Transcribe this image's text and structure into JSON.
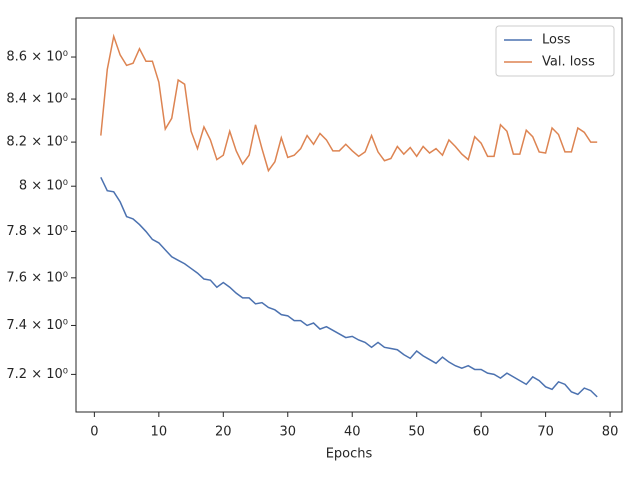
{
  "chart_data": {
    "type": "line",
    "xlabel": "Epochs",
    "log_y": true,
    "legend": "upper right",
    "x": [
      1,
      2,
      3,
      4,
      5,
      6,
      7,
      8,
      9,
      10,
      11,
      12,
      13,
      14,
      15,
      16,
      17,
      18,
      19,
      20,
      21,
      22,
      23,
      24,
      25,
      26,
      27,
      28,
      29,
      30,
      31,
      32,
      33,
      34,
      35,
      36,
      37,
      38,
      39,
      40,
      41,
      42,
      43,
      44,
      45,
      46,
      47,
      48,
      49,
      50,
      51,
      52,
      53,
      54,
      55,
      56,
      57,
      58,
      59,
      60,
      61,
      62,
      63,
      64,
      65,
      66,
      67,
      68,
      69,
      70,
      71,
      72,
      73,
      74,
      75,
      76,
      77,
      78
    ],
    "series": [
      {
        "name": "Loss",
        "color": "#4c72b0",
        "values": [
          8.04,
          7.98,
          7.975,
          7.93,
          7.865,
          7.855,
          7.83,
          7.8,
          7.765,
          7.75,
          7.72,
          7.69,
          7.675,
          7.66,
          7.64,
          7.62,
          7.595,
          7.59,
          7.56,
          7.58,
          7.56,
          7.535,
          7.515,
          7.515,
          7.49,
          7.495,
          7.475,
          7.465,
          7.445,
          7.44,
          7.42,
          7.42,
          7.4,
          7.41,
          7.385,
          7.395,
          7.38,
          7.365,
          7.35,
          7.355,
          7.34,
          7.33,
          7.31,
          7.33,
          7.31,
          7.305,
          7.3,
          7.28,
          7.265,
          7.295,
          7.275,
          7.26,
          7.245,
          7.27,
          7.25,
          7.235,
          7.225,
          7.235,
          7.22,
          7.22,
          7.205,
          7.2,
          7.185,
          7.205,
          7.19,
          7.175,
          7.16,
          7.19,
          7.175,
          7.15,
          7.14,
          7.17,
          7.16,
          7.13,
          7.12,
          7.145,
          7.135,
          7.11
        ]
      },
      {
        "name": "Val. loss",
        "color": "#dd8452",
        "values": [
          8.23,
          8.54,
          8.7,
          8.61,
          8.56,
          8.57,
          8.64,
          8.58,
          8.58,
          8.48,
          8.26,
          8.31,
          8.49,
          8.47,
          8.25,
          8.17,
          8.27,
          8.21,
          8.12,
          8.14,
          8.25,
          8.16,
          8.1,
          8.14,
          8.28,
          8.17,
          8.07,
          8.11,
          8.22,
          8.13,
          8.14,
          8.17,
          8.23,
          8.19,
          8.24,
          8.21,
          8.16,
          8.16,
          8.19,
          8.16,
          8.135,
          8.155,
          8.23,
          8.155,
          8.115,
          8.125,
          8.18,
          8.145,
          8.175,
          8.135,
          8.18,
          8.15,
          8.17,
          8.14,
          8.21,
          8.18,
          8.145,
          8.12,
          8.225,
          8.195,
          8.135,
          8.135,
          8.28,
          8.25,
          8.145,
          8.145,
          8.255,
          8.225,
          8.155,
          8.15,
          8.265,
          8.235,
          8.155,
          8.155,
          8.265,
          8.245,
          8.2,
          8.2
        ]
      }
    ],
    "xlim": [
      -2.85,
      81.85
    ],
    "xticks": [
      0,
      10,
      20,
      30,
      40,
      50,
      60,
      70,
      80
    ],
    "ylim": [
      7.05,
      8.79
    ],
    "yticks": [
      {
        "value": 7.2,
        "label": "7.2 × 10⁰"
      },
      {
        "value": 7.4,
        "label": "7.4 × 10⁰"
      },
      {
        "value": 7.6,
        "label": "7.6 × 10⁰"
      },
      {
        "value": 7.8,
        "label": "7.8 × 10⁰"
      },
      {
        "value": 8,
        "label": "8 × 10⁰"
      },
      {
        "value": 8.2,
        "label": "8.2 × 10⁰"
      },
      {
        "value": 8.4,
        "label": "8.4 × 10⁰"
      },
      {
        "value": 8.6,
        "label": "8.6 × 10⁰"
      }
    ]
  }
}
